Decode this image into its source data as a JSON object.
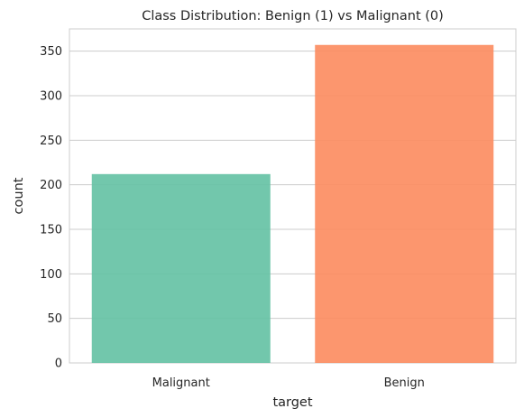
{
  "chart_data": {
    "type": "bar",
    "title": "Class Distribution: Benign (1) vs Malignant (0)",
    "xlabel": "target",
    "ylabel": "count",
    "categories": [
      "Malignant",
      "Benign"
    ],
    "values": [
      212,
      357
    ],
    "colors": [
      "#66c2a5",
      "#fc8d62"
    ],
    "ylim": [
      0,
      375
    ],
    "yticks": [
      0,
      50,
      100,
      150,
      200,
      250,
      300,
      350
    ],
    "grid": true,
    "legend": "none"
  }
}
